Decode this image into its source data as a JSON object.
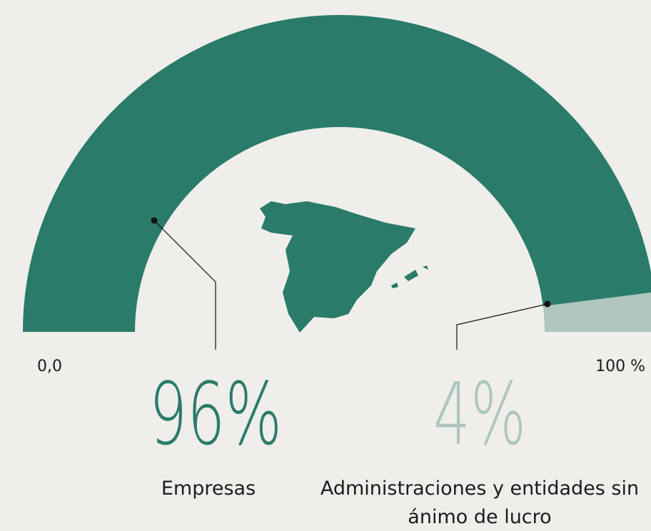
{
  "chart_data": {
    "type": "gauge",
    "categories": [
      "Empresas",
      "Administraciones y entidades sin ánimo de lucro"
    ],
    "values": [
      96,
      4
    ],
    "value_labels": [
      "96%",
      "4%"
    ],
    "colors": [
      "#2a7b6a",
      "#aec6bd"
    ],
    "xlim": [
      0,
      100
    ],
    "xticks": [
      {
        "value": 0,
        "label": "0,0"
      },
      {
        "value": 100,
        "label": "100 %"
      }
    ]
  }
}
